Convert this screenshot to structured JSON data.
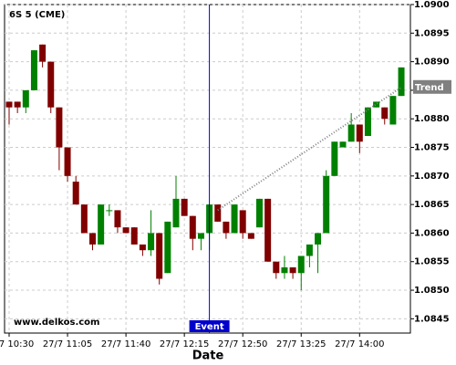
{
  "chart_data": {
    "type": "candlestick",
    "title": "6S 5 (CME)",
    "watermark": "www.delkos.com",
    "xlabel": "Date",
    "categories": [
      "27/7 10:30",
      null,
      null,
      null,
      null,
      null,
      null,
      "27/7 11:05",
      null,
      null,
      null,
      null,
      null,
      null,
      "27/7 11:40",
      null,
      null,
      null,
      null,
      null,
      null,
      "27/7 12:15",
      null,
      null,
      null,
      null,
      null,
      null,
      "27/7 12:50",
      null,
      null,
      null,
      null,
      null,
      null,
      "27/7 13:25",
      null,
      null,
      null,
      null,
      null,
      null,
      "27/7 14:00",
      null,
      null,
      null,
      null,
      null
    ],
    "open": [
      1.0883,
      1.0883,
      1.0882,
      1.0885,
      1.0893,
      1.089,
      1.0882,
      1.0875,
      1.0869,
      1.0865,
      1.086,
      1.0858,
      1.0864,
      1.0864,
      1.0861,
      1.0861,
      1.0858,
      1.0857,
      1.086,
      1.0853,
      1.0861,
      1.0866,
      1.0863,
      1.0859,
      1.086,
      1.0865,
      1.0862,
      1.086,
      1.0864,
      1.086,
      1.0861,
      1.0866,
      1.0855,
      1.0853,
      1.0854,
      1.0853,
      1.0856,
      1.0858,
      1.086,
      1.087,
      1.0875,
      1.0876,
      1.0879,
      1.0877,
      1.0882,
      1.0882,
      1.0879,
      1.0884
    ],
    "high": [
      1.0883,
      1.0883,
      1.0885,
      1.0892,
      1.0893,
      1.089,
      1.0882,
      1.0875,
      1.087,
      1.0865,
      1.086,
      1.0865,
      1.0865,
      1.0864,
      1.0861,
      1.0861,
      1.0858,
      1.0864,
      1.086,
      1.0862,
      1.087,
      1.0866,
      1.0863,
      1.086,
      1.0865,
      1.0865,
      1.0862,
      1.0865,
      1.0864,
      1.086,
      1.0866,
      1.0866,
      1.0855,
      1.0856,
      1.0854,
      1.0856,
      1.0858,
      1.086,
      1.0871,
      1.0876,
      1.0876,
      1.0881,
      1.0879,
      1.0882,
      1.0883,
      1.0882,
      1.0884,
      1.0889
    ],
    "low": [
      1.0879,
      1.0881,
      1.0881,
      1.0885,
      1.0889,
      1.0881,
      1.0871,
      1.0869,
      1.0865,
      1.086,
      1.0857,
      1.0858,
      1.0863,
      1.086,
      1.086,
      1.0858,
      1.0856,
      1.0856,
      1.0851,
      1.0853,
      1.0861,
      1.0863,
      1.0857,
      1.0857,
      1.0857,
      1.0862,
      1.0859,
      1.086,
      1.0859,
      1.0859,
      1.0861,
      1.0855,
      1.0852,
      1.0852,
      1.0852,
      1.085,
      1.0854,
      1.0853,
      1.086,
      1.087,
      1.0875,
      1.0876,
      1.0874,
      1.0877,
      1.0882,
      1.0879,
      1.0879,
      1.0884
    ],
    "close": [
      1.0882,
      1.0882,
      1.0885,
      1.0892,
      1.089,
      1.0882,
      1.0875,
      1.087,
      1.0865,
      1.086,
      1.0858,
      1.0865,
      1.0864,
      1.0861,
      1.086,
      1.0858,
      1.0857,
      1.086,
      1.0852,
      1.0862,
      1.0866,
      1.0863,
      1.0859,
      1.086,
      1.0865,
      1.0862,
      1.086,
      1.0865,
      1.086,
      1.0859,
      1.0866,
      1.0855,
      1.0853,
      1.0854,
      1.0853,
      1.0856,
      1.0858,
      1.086,
      1.087,
      1.0876,
      1.0876,
      1.0879,
      1.0876,
      1.0882,
      1.0883,
      1.088,
      1.0884,
      1.0889
    ],
    "up_color": "#008000",
    "down_color": "#800000",
    "ylim": [
      1.08425,
      1.09
    ],
    "yticks": [
      1.0845,
      {
        "value": 1.085,
        "label": "1.0850"
      },
      1.0855,
      {
        "value": 1.086,
        "label": "1.0860"
      },
      1.0865,
      {
        "value": 1.087,
        "label": "1.0870"
      },
      1.0875,
      {
        "value": 1.088,
        "label": "1.0880"
      },
      1.0885,
      {
        "value": 1.089,
        "label": "1.0890"
      },
      1.0895,
      {
        "value": 1.09,
        "label": "1.0900"
      }
    ],
    "grid": true,
    "event": {
      "label": "Event",
      "index": 24,
      "color": "#0000cc"
    },
    "trend": {
      "label": "Trend",
      "x": [
        25,
        47
      ],
      "values": [
        1.0864,
        1.08855
      ],
      "color": "#808080"
    }
  }
}
